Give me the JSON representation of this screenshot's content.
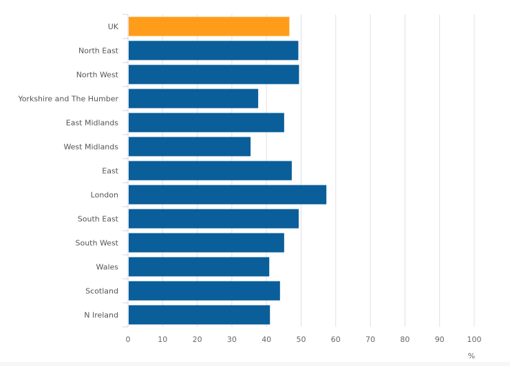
{
  "chart_data": {
    "type": "bar",
    "orientation": "horizontal",
    "categories": [
      "UK",
      "North East",
      "North West",
      "Yorkshire and The Humber",
      "East Midlands",
      "West Midlands",
      "East",
      "London",
      "South East",
      "South West",
      "Wales",
      "Scotland",
      "N Ireland"
    ],
    "values": [
      46.6,
      49.2,
      49.4,
      37.6,
      45.1,
      35.4,
      47.3,
      57.3,
      49.3,
      45.1,
      40.8,
      43.9,
      41.0
    ],
    "highlight": "UK",
    "colors": {
      "bar": "#0a5e99",
      "highlight": "#ff9d1b",
      "grid": "#e0e0e0",
      "axis": "#ccd6eb"
    },
    "xlabel": "%",
    "xlim": [
      0,
      100
    ],
    "xticks": [
      0,
      10,
      20,
      30,
      40,
      50,
      60,
      70,
      80,
      90,
      100
    ],
    "grid": true,
    "legend": "none"
  }
}
